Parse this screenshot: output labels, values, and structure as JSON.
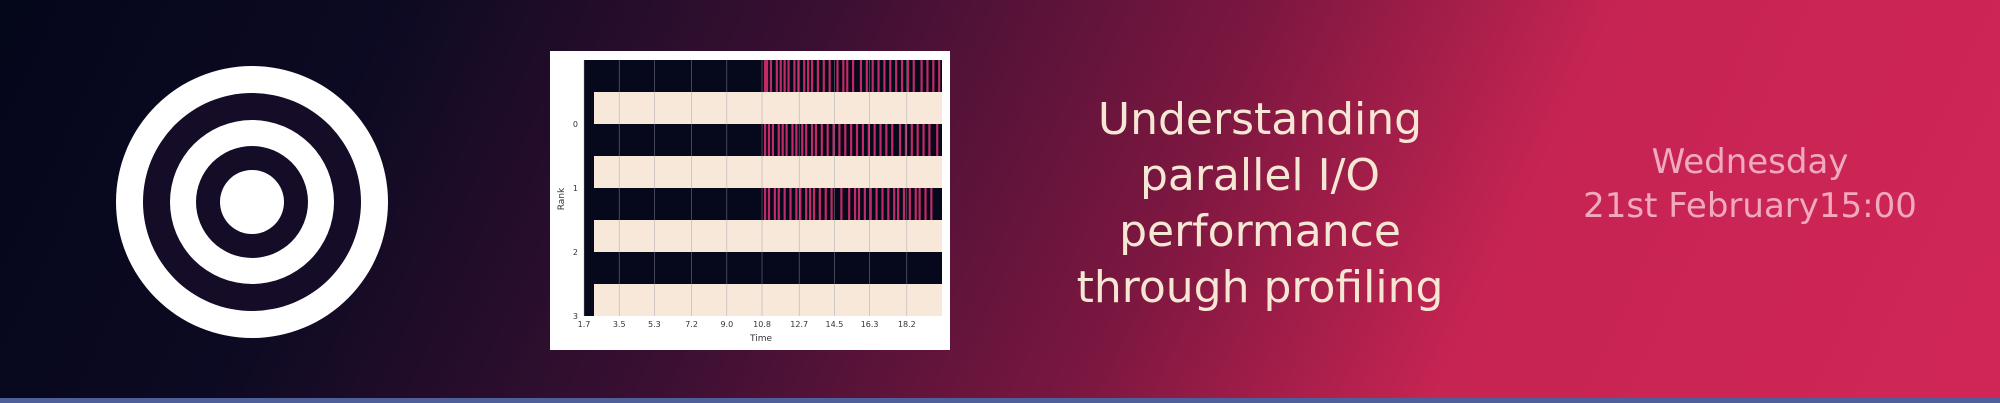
{
  "colors": {
    "background_dark": "#04061a",
    "background_bright": "#d02656",
    "title_text": "#f6e7d4",
    "date_text": "#f1a9bf",
    "chart_idle": "#06081c",
    "chart_band": "#f8e8da",
    "chart_io": "#d4306a"
  },
  "logo": {
    "icon": "target-rings-icon"
  },
  "title": {
    "lines": [
      "Understanding",
      "parallel I/O",
      "performance",
      "through profiling"
    ]
  },
  "schedule": {
    "day": "Wednesday",
    "date": "21st February",
    "time": "15:00"
  },
  "chart_data": {
    "type": "heatmap",
    "title": "",
    "xlabel": "Time",
    "ylabel": "Rank",
    "x_ticks": [
      "1.7",
      "3.5",
      "5.3",
      "7.2",
      "9.0",
      "10.8",
      "12.7",
      "14.5",
      "16.3",
      "18.2"
    ],
    "y_ticks": [
      "0",
      "1",
      "2",
      "3"
    ],
    "xlim": [
      1.7,
      20.0
    ],
    "rows": [
      {
        "rank": "0",
        "idle_until": 10.8,
        "io_bursts": [
          10.9,
          11.0,
          11.2,
          11.5,
          11.7,
          11.9,
          12.1,
          12.4,
          12.6,
          12.9,
          13.1,
          13.3,
          13.6,
          13.9,
          14.2,
          14.6,
          14.9,
          15.1,
          15.4,
          15.8,
          16.1,
          16.4,
          16.7,
          17.0,
          17.3,
          17.6,
          17.9,
          18.2,
          18.5,
          18.9,
          19.2,
          19.5,
          19.8
        ]
      },
      {
        "rank": "0",
        "idle_until": 10.8,
        "io_bursts": [
          10.9,
          11.1,
          11.3,
          11.6,
          11.8,
          12.0,
          12.3,
          12.5,
          12.8,
          13.0,
          13.3,
          13.5,
          13.8,
          14.1,
          14.4,
          14.7,
          15.0,
          15.3,
          15.6,
          15.9,
          16.2,
          16.5,
          16.8,
          17.1,
          17.4,
          17.8,
          18.1,
          18.4,
          18.7,
          19.0,
          19.3,
          19.7
        ]
      },
      {
        "rank": "1",
        "idle_until": 10.8,
        "io_bursts": [
          10.9,
          11.1,
          11.4,
          11.6,
          11.9,
          12.2,
          12.5,
          12.7,
          13.0,
          13.2,
          13.4,
          13.7,
          14.0,
          14.3,
          14.8,
          15.2,
          15.5,
          15.7,
          16.0,
          16.3,
          16.6,
          16.9,
          17.2,
          17.5,
          17.7,
          18.0,
          18.3,
          18.6,
          18.8,
          19.1,
          19.4
        ]
      },
      {
        "rank": "2",
        "idle_until": 20.0,
        "io_bursts": []
      }
    ]
  }
}
